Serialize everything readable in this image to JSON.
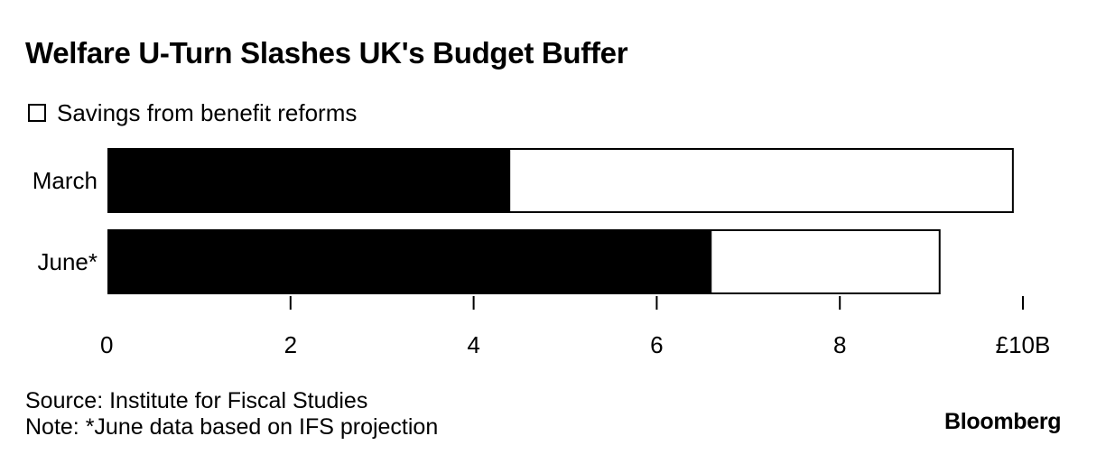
{
  "chart_data": {
    "type": "bar",
    "orientation": "horizontal",
    "stacked": false,
    "overlaid": true,
    "title": "Welfare U-Turn Slashes UK's Budget Buffer",
    "categories": [
      "March",
      "June*"
    ],
    "series": [
      {
        "name": "",
        "values": [
          9.9,
          9.1
        ],
        "color": "#ffffff",
        "outline": "#000000"
      },
      {
        "name": "Savings from benefit reforms",
        "values": [
          4.4,
          6.6
        ],
        "color": "#000000"
      }
    ],
    "legend": {
      "label": "Savings from benefit reforms",
      "position": "top-left"
    },
    "xlim": [
      0,
      10
    ],
    "xticks": [
      0,
      2,
      4,
      6,
      8,
      10
    ],
    "xtick_labels": [
      "0",
      "2",
      "4",
      "6",
      "8",
      "£10B"
    ],
    "xlabel": "",
    "ylabel": "",
    "grid": false
  },
  "footer": {
    "source": "Source: Institute for Fiscal Studies",
    "note": "Note: *June data based on IFS projection",
    "brand": "Bloomberg"
  },
  "colors": {
    "bar_fill": "#000000",
    "outline": "#000000",
    "background": "#ffffff"
  }
}
